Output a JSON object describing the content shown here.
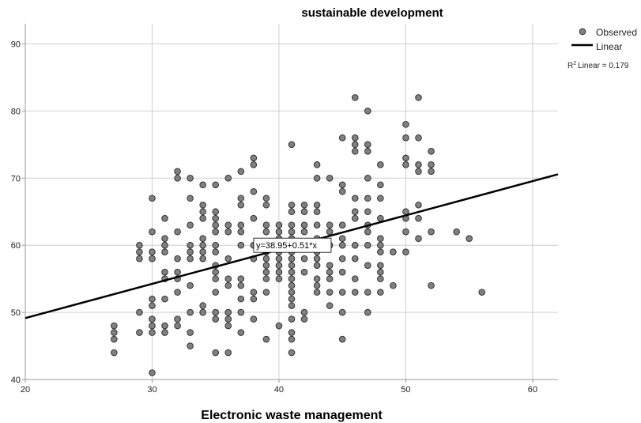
{
  "chart_data": {
    "type": "scatter",
    "title": "sustainable development",
    "xlabel": "Electronic waste management",
    "ylabel": "",
    "xlim": [
      20,
      62
    ],
    "ylim": [
      40,
      93
    ],
    "x_ticks": [
      "20",
      "30",
      "40",
      "50",
      "60"
    ],
    "y_ticks": [
      "40",
      "50",
      "60",
      "70",
      "80",
      "90"
    ],
    "grid": true,
    "legend": {
      "placement": "top-right",
      "entries": [
        "Observed",
        "Linear"
      ],
      "r2_label": "Linear = 0.179",
      "r2_prefix": "R"
    },
    "fit": {
      "intercept": 38.95,
      "slope": 0.51,
      "label": "y=38.95+0.51*x",
      "label_at": [
        40,
        60
      ]
    },
    "colors": {
      "point_fill": "#808080",
      "point_stroke": "#333333",
      "line": "#000000",
      "grid": "#cfcfcf"
    },
    "series": [
      {
        "name": "Observed",
        "points": [
          [
            27,
            48
          ],
          [
            27,
            47
          ],
          [
            27,
            46
          ],
          [
            27,
            44
          ],
          [
            29,
            60
          ],
          [
            29,
            59
          ],
          [
            29,
            58
          ],
          [
            29,
            50
          ],
          [
            29,
            47
          ],
          [
            30,
            67
          ],
          [
            30,
            62
          ],
          [
            30,
            59
          ],
          [
            30,
            58
          ],
          [
            30,
            52
          ],
          [
            30,
            51
          ],
          [
            30,
            49
          ],
          [
            30,
            48
          ],
          [
            30,
            47
          ],
          [
            30,
            41
          ],
          [
            31,
            64
          ],
          [
            31,
            61
          ],
          [
            31,
            60
          ],
          [
            31,
            59
          ],
          [
            31,
            56
          ],
          [
            31,
            55
          ],
          [
            31,
            52
          ],
          [
            31,
            48
          ],
          [
            31,
            47
          ],
          [
            32,
            71
          ],
          [
            32,
            70
          ],
          [
            32,
            62
          ],
          [
            32,
            58
          ],
          [
            32,
            56
          ],
          [
            32,
            55
          ],
          [
            32,
            53
          ],
          [
            32,
            49
          ],
          [
            32,
            48
          ],
          [
            33,
            70
          ],
          [
            33,
            67
          ],
          [
            33,
            63
          ],
          [
            33,
            60
          ],
          [
            33,
            59
          ],
          [
            33,
            58
          ],
          [
            33,
            54
          ],
          [
            33,
            50
          ],
          [
            33,
            47
          ],
          [
            33,
            45
          ],
          [
            34,
            69
          ],
          [
            34,
            66
          ],
          [
            34,
            65
          ],
          [
            34,
            64
          ],
          [
            34,
            61
          ],
          [
            34,
            60
          ],
          [
            34,
            59
          ],
          [
            34,
            58
          ],
          [
            34,
            51
          ],
          [
            34,
            50
          ],
          [
            35,
            69
          ],
          [
            35,
            65
          ],
          [
            35,
            64
          ],
          [
            35,
            63
          ],
          [
            35,
            62
          ],
          [
            35,
            60
          ],
          [
            35,
            59
          ],
          [
            35,
            57
          ],
          [
            35,
            56
          ],
          [
            35,
            55
          ],
          [
            35,
            53
          ],
          [
            35,
            50
          ],
          [
            35,
            49
          ],
          [
            35,
            44
          ],
          [
            36,
            70
          ],
          [
            36,
            63
          ],
          [
            36,
            62
          ],
          [
            36,
            58
          ],
          [
            36,
            55
          ],
          [
            36,
            54
          ],
          [
            36,
            50
          ],
          [
            36,
            49
          ],
          [
            36,
            48
          ],
          [
            36,
            44
          ],
          [
            37,
            71
          ],
          [
            37,
            67
          ],
          [
            37,
            66
          ],
          [
            37,
            63
          ],
          [
            37,
            62
          ],
          [
            37,
            60
          ],
          [
            37,
            55
          ],
          [
            37,
            54
          ],
          [
            37,
            52
          ],
          [
            37,
            50
          ],
          [
            37,
            47
          ],
          [
            38,
            73
          ],
          [
            38,
            72
          ],
          [
            38,
            68
          ],
          [
            38,
            64
          ],
          [
            38,
            60
          ],
          [
            38,
            58
          ],
          [
            38,
            53
          ],
          [
            38,
            52
          ],
          [
            38,
            49
          ],
          [
            39,
            67
          ],
          [
            39,
            66
          ],
          [
            39,
            63
          ],
          [
            39,
            62
          ],
          [
            39,
            60
          ],
          [
            39,
            59
          ],
          [
            39,
            58
          ],
          [
            39,
            57
          ],
          [
            39,
            56
          ],
          [
            39,
            55
          ],
          [
            39,
            53
          ],
          [
            39,
            46
          ],
          [
            40,
            63
          ],
          [
            40,
            62
          ],
          [
            40,
            61
          ],
          [
            40,
            60
          ],
          [
            40,
            59
          ],
          [
            40,
            58
          ],
          [
            40,
            57
          ],
          [
            40,
            56
          ],
          [
            40,
            55
          ],
          [
            40,
            48
          ],
          [
            41,
            75
          ],
          [
            41,
            66
          ],
          [
            41,
            65
          ],
          [
            41,
            63
          ],
          [
            41,
            62
          ],
          [
            41,
            61
          ],
          [
            41,
            60
          ],
          [
            41,
            59
          ],
          [
            41,
            58
          ],
          [
            41,
            57
          ],
          [
            41,
            56
          ],
          [
            41,
            55
          ],
          [
            41,
            54
          ],
          [
            41,
            53
          ],
          [
            41,
            52
          ],
          [
            41,
            51
          ],
          [
            41,
            49
          ],
          [
            41,
            47
          ],
          [
            41,
            46
          ],
          [
            41,
            44
          ],
          [
            42,
            66
          ],
          [
            42,
            65
          ],
          [
            42,
            63
          ],
          [
            42,
            62
          ],
          [
            42,
            60
          ],
          [
            42,
            58
          ],
          [
            42,
            56
          ],
          [
            42,
            50
          ],
          [
            42,
            49
          ],
          [
            43,
            72
          ],
          [
            43,
            70
          ],
          [
            43,
            66
          ],
          [
            43,
            65
          ],
          [
            43,
            63
          ],
          [
            43,
            61
          ],
          [
            43,
            60
          ],
          [
            43,
            59
          ],
          [
            43,
            58
          ],
          [
            43,
            57
          ],
          [
            43,
            55
          ],
          [
            43,
            54
          ],
          [
            43,
            53
          ],
          [
            44,
            70
          ],
          [
            44,
            63
          ],
          [
            44,
            62
          ],
          [
            44,
            60
          ],
          [
            44,
            57
          ],
          [
            44,
            56
          ],
          [
            44,
            55
          ],
          [
            44,
            53
          ],
          [
            44,
            51
          ],
          [
            45,
            76
          ],
          [
            45,
            69
          ],
          [
            45,
            68
          ],
          [
            45,
            63
          ],
          [
            45,
            61
          ],
          [
            45,
            60
          ],
          [
            45,
            58
          ],
          [
            45,
            56
          ],
          [
            45,
            53
          ],
          [
            45,
            50
          ],
          [
            45,
            46
          ],
          [
            46,
            82
          ],
          [
            46,
            76
          ],
          [
            46,
            75
          ],
          [
            46,
            74
          ],
          [
            46,
            67
          ],
          [
            46,
            65
          ],
          [
            46,
            64
          ],
          [
            46,
            60
          ],
          [
            46,
            58
          ],
          [
            46,
            55
          ],
          [
            46,
            53
          ],
          [
            47,
            80
          ],
          [
            47,
            75
          ],
          [
            47,
            74
          ],
          [
            47,
            70
          ],
          [
            47,
            67
          ],
          [
            47,
            65
          ],
          [
            47,
            63
          ],
          [
            47,
            62
          ],
          [
            47,
            60
          ],
          [
            47,
            57
          ],
          [
            47,
            53
          ],
          [
            47,
            50
          ],
          [
            48,
            72
          ],
          [
            48,
            69
          ],
          [
            48,
            67
          ],
          [
            48,
            64
          ],
          [
            48,
            61
          ],
          [
            48,
            60
          ],
          [
            48,
            59
          ],
          [
            48,
            57
          ],
          [
            48,
            56
          ],
          [
            48,
            55
          ],
          [
            48,
            53
          ],
          [
            49,
            59
          ],
          [
            49,
            54
          ],
          [
            50,
            78
          ],
          [
            50,
            76
          ],
          [
            50,
            73
          ],
          [
            50,
            72
          ],
          [
            50,
            65
          ],
          [
            50,
            64
          ],
          [
            50,
            62
          ],
          [
            50,
            59
          ],
          [
            51,
            82
          ],
          [
            51,
            76
          ],
          [
            51,
            72
          ],
          [
            51,
            71
          ],
          [
            51,
            66
          ],
          [
            51,
            64
          ],
          [
            51,
            61
          ],
          [
            52,
            74
          ],
          [
            52,
            72
          ],
          [
            52,
            71
          ],
          [
            52,
            62
          ],
          [
            52,
            54
          ],
          [
            54,
            62
          ],
          [
            55,
            61
          ],
          [
            56,
            53
          ]
        ]
      }
    ]
  }
}
